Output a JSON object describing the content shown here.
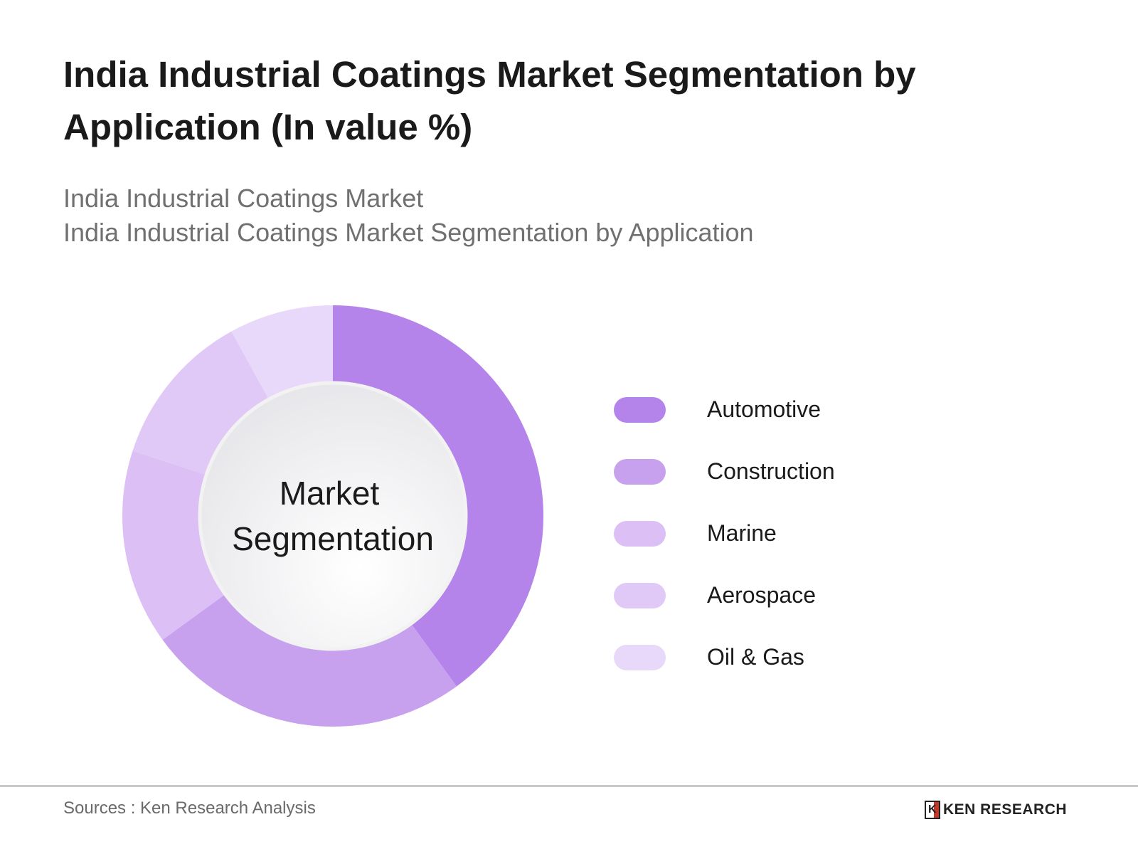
{
  "title": "India Industrial Coatings Market Segmentation by Application (In value %)",
  "subtitle1": "India Industrial Coatings Market",
  "subtitle2": "India Industrial Coatings Market Segmentation by Application",
  "chart_data": {
    "type": "pie",
    "variant": "donut",
    "center_label": "Market Segmentation",
    "categories": [
      "Automotive",
      "Construction",
      "Marine",
      "Aerospace",
      "Oil & Gas"
    ],
    "values": [
      40,
      25,
      15,
      12,
      8
    ],
    "colors": [
      "#b484eb",
      "#c7a0ee",
      "#dbbff5",
      "#e0c9f6",
      "#e8d8fa"
    ],
    "legend_position": "right"
  },
  "footer": {
    "source": "Sources : Ken Research Analysis",
    "logo": "KEN RESEARCH"
  }
}
